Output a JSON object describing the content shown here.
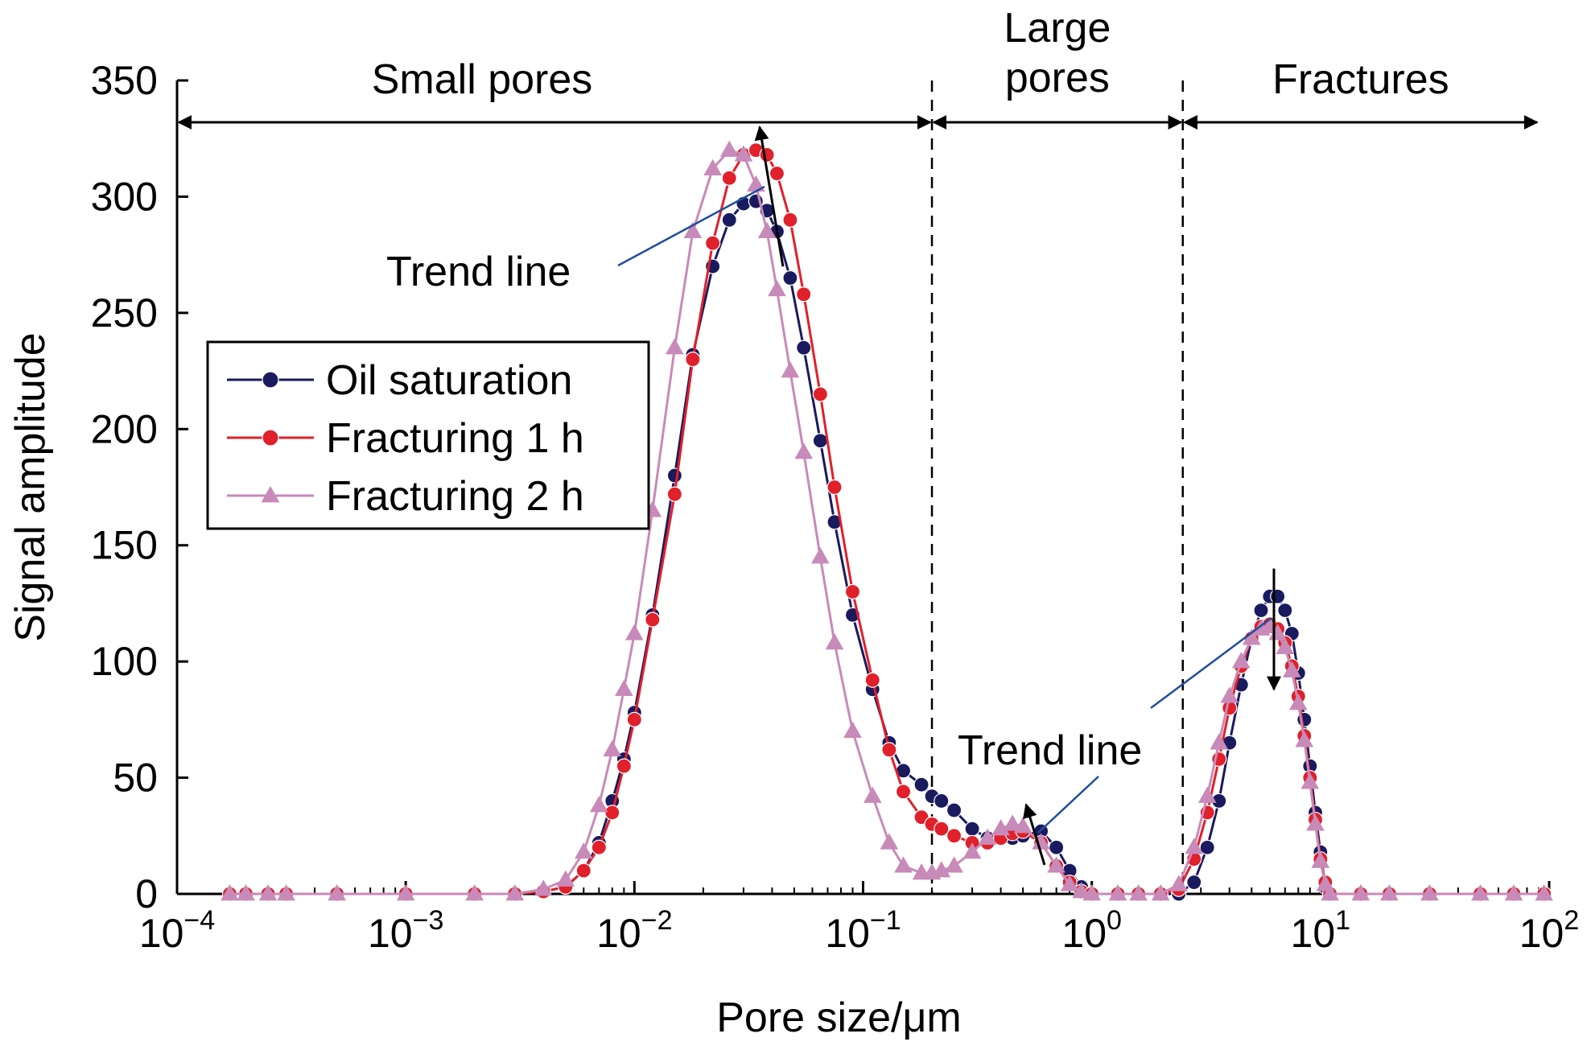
{
  "chart_data": {
    "type": "scatter",
    "xlabel": "Pore size/μm",
    "ylabel": "Signal amplitude",
    "xscale": "log",
    "xlim": [
      0.0001,
      100
    ],
    "ylim": [
      0,
      350
    ],
    "xticks": [
      {
        "value": 0.0001,
        "base": "10",
        "exp": "−4"
      },
      {
        "value": 0.001,
        "base": "10",
        "exp": "−3"
      },
      {
        "value": 0.01,
        "base": "10",
        "exp": "−2"
      },
      {
        "value": 0.1,
        "base": "10",
        "exp": "−1"
      },
      {
        "value": 1,
        "base": "10",
        "exp": "0"
      },
      {
        "value": 10,
        "base": "10",
        "exp": "1"
      },
      {
        "value": 100,
        "base": "10",
        "exp": "2"
      }
    ],
    "yticks": [
      "0",
      "50",
      "100",
      "150",
      "200",
      "250",
      "300",
      "350"
    ],
    "grid": false,
    "legend_position": "left",
    "regions": [
      {
        "label": "Small pores",
        "from": 0.0001,
        "to": 0.2
      },
      {
        "label_lines": [
          "Large",
          "pores"
        ],
        "from": 0.2,
        "to": 2.5
      },
      {
        "label": "Fractures",
        "from": 2.5,
        "to": 90
      }
    ],
    "boundaries": [
      0.2,
      2.5
    ],
    "annotations": [
      {
        "text": "Trend line",
        "arrow_from": [
          0.035,
          270
        ],
        "arrow_to": [
          0.03,
          330
        ],
        "direction": "up"
      },
      {
        "text": "Trend line",
        "arrow_from": [
          0.55,
          15
        ],
        "arrow_to": [
          0.45,
          38
        ],
        "direction": "up"
      },
      {
        "text": "",
        "arrow_from": [
          6,
          140
        ],
        "arrow_to": [
          6,
          88
        ],
        "direction": "down"
      }
    ],
    "series": [
      {
        "name": "Oil saturation",
        "color": "#1a1a5e",
        "marker": "circle",
        "x": [
          0.00017,
          0.0002,
          0.00025,
          0.0003,
          0.0005,
          0.001,
          0.002,
          0.003,
          0.004,
          0.005,
          0.006,
          0.007,
          0.008,
          0.009,
          0.01,
          0.012,
          0.015,
          0.018,
          0.022,
          0.026,
          0.03,
          0.034,
          0.038,
          0.042,
          0.048,
          0.055,
          0.065,
          0.075,
          0.09,
          0.11,
          0.13,
          0.15,
          0.18,
          0.2,
          0.22,
          0.25,
          0.3,
          0.35,
          0.4,
          0.45,
          0.5,
          0.6,
          0.7,
          0.8,
          0.9,
          1.0,
          1.3,
          1.6,
          2.0,
          2.4,
          2.8,
          3.2,
          3.6,
          4.0,
          4.5,
          5.0,
          5.5,
          6.0,
          6.5,
          7.0,
          7.5,
          8.0,
          8.5,
          9.0,
          9.5,
          10,
          10.5,
          11,
          15,
          20,
          30,
          50,
          70,
          95
        ],
        "y": [
          0,
          0,
          0,
          0,
          0,
          0,
          0,
          0,
          1,
          3,
          10,
          22,
          40,
          58,
          78,
          120,
          180,
          232,
          270,
          290,
          297,
          298,
          294,
          285,
          265,
          235,
          195,
          160,
          120,
          88,
          65,
          53,
          47,
          42,
          40,
          36,
          28,
          24,
          24,
          24,
          25,
          27,
          20,
          10,
          3,
          0,
          0,
          0,
          0,
          0,
          5,
          20,
          40,
          65,
          90,
          110,
          122,
          128,
          128,
          122,
          112,
          95,
          75,
          55,
          35,
          18,
          3,
          0,
          0,
          0,
          0,
          0,
          0,
          0
        ]
      },
      {
        "name": "Fracturing 1 h",
        "color": "#e0202a",
        "marker": "circle",
        "x": [
          0.00017,
          0.0002,
          0.00025,
          0.0003,
          0.0005,
          0.001,
          0.002,
          0.003,
          0.004,
          0.005,
          0.006,
          0.007,
          0.008,
          0.009,
          0.01,
          0.012,
          0.015,
          0.018,
          0.022,
          0.026,
          0.03,
          0.034,
          0.038,
          0.042,
          0.048,
          0.055,
          0.065,
          0.075,
          0.09,
          0.11,
          0.13,
          0.15,
          0.18,
          0.2,
          0.22,
          0.25,
          0.3,
          0.35,
          0.4,
          0.45,
          0.5,
          0.6,
          0.7,
          0.8,
          0.9,
          1.0,
          1.3,
          1.6,
          2.0,
          2.4,
          2.8,
          3.2,
          3.6,
          4.0,
          4.5,
          5.0,
          5.5,
          6.0,
          6.5,
          7.0,
          7.5,
          8.0,
          8.5,
          9.0,
          9.5,
          10,
          10.5,
          11,
          15,
          20,
          30,
          50,
          70,
          95
        ],
        "y": [
          0,
          0,
          0,
          0,
          0,
          0,
          0,
          0,
          1,
          3,
          10,
          20,
          35,
          55,
          75,
          118,
          172,
          230,
          280,
          308,
          318,
          320,
          318,
          310,
          290,
          258,
          215,
          175,
          130,
          92,
          62,
          44,
          33,
          30,
          28,
          25,
          22,
          22,
          24,
          26,
          27,
          22,
          12,
          5,
          1,
          0,
          0,
          0,
          0,
          2,
          15,
          35,
          58,
          80,
          98,
          110,
          115,
          116,
          114,
          108,
          98,
          85,
          68,
          50,
          32,
          15,
          5,
          0,
          0,
          0,
          0,
          0,
          0,
          0
        ]
      },
      {
        "name": "Fracturing 2 h",
        "color": "#c88ab8",
        "marker": "triangle",
        "x": [
          0.00017,
          0.0002,
          0.00025,
          0.0003,
          0.0005,
          0.001,
          0.002,
          0.003,
          0.004,
          0.005,
          0.006,
          0.007,
          0.008,
          0.009,
          0.01,
          0.012,
          0.015,
          0.018,
          0.022,
          0.026,
          0.03,
          0.034,
          0.038,
          0.042,
          0.048,
          0.055,
          0.065,
          0.075,
          0.09,
          0.11,
          0.13,
          0.15,
          0.18,
          0.2,
          0.22,
          0.25,
          0.3,
          0.35,
          0.4,
          0.45,
          0.5,
          0.6,
          0.7,
          0.8,
          0.9,
          1.0,
          1.3,
          1.6,
          2.0,
          2.4,
          2.8,
          3.2,
          3.6,
          4.0,
          4.5,
          5.0,
          5.5,
          6.0,
          6.5,
          7.0,
          7.5,
          8.0,
          8.5,
          9.0,
          9.5,
          10,
          10.5,
          11,
          15,
          20,
          30,
          50,
          70,
          95
        ],
        "y": [
          0,
          0,
          0,
          0,
          0,
          0,
          0,
          0,
          2,
          6,
          18,
          38,
          62,
          88,
          112,
          165,
          235,
          285,
          312,
          320,
          318,
          305,
          285,
          260,
          225,
          190,
          145,
          108,
          70,
          42,
          22,
          12,
          9,
          9,
          10,
          12,
          18,
          24,
          28,
          30,
          29,
          22,
          12,
          4,
          1,
          0,
          0,
          0,
          0,
          4,
          20,
          42,
          65,
          85,
          100,
          110,
          114,
          115,
          112,
          106,
          96,
          82,
          66,
          48,
          30,
          14,
          4,
          0,
          0,
          0,
          0,
          0,
          0,
          0
        ]
      }
    ]
  }
}
